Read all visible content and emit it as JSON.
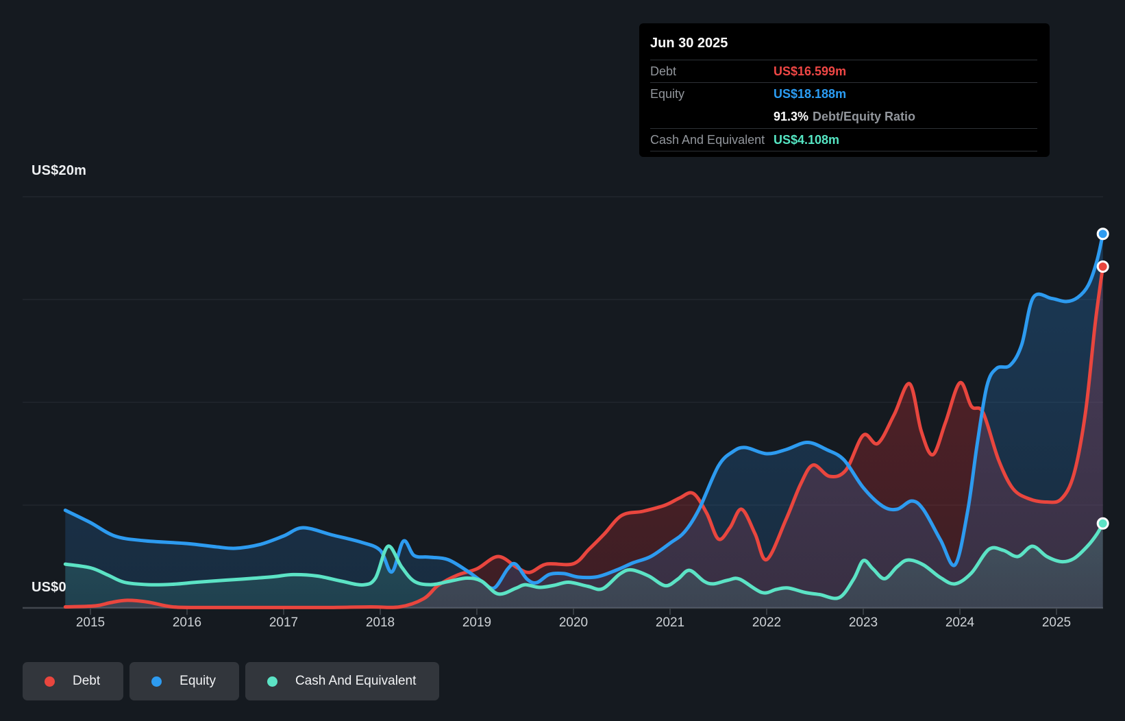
{
  "y_axis": {
    "top": "US$20m",
    "zero": "US$0"
  },
  "tooltip": {
    "title": "Jun 30 2025",
    "debt_label": "Debt",
    "debt_value": "US$16.599m",
    "equity_label": "Equity",
    "equity_value": "US$18.188m",
    "ratio_value": "91.3%",
    "ratio_label": "Debt/Equity Ratio",
    "cash_label": "Cash And Equivalent",
    "cash_value": "US$4.108m"
  },
  "legend": [
    {
      "id": "debt",
      "label": "Debt",
      "color": "#e9463e"
    },
    {
      "id": "equity",
      "label": "Equity",
      "color": "#2d9bf0"
    },
    {
      "id": "cash",
      "label": "Cash And Equivalent",
      "color": "#5ce3c5"
    }
  ],
  "chart_data": {
    "type": "area",
    "title": "Debt to Equity history (US$ millions)",
    "xlabel": "",
    "ylabel": "US$m",
    "ylim": [
      0,
      20
    ],
    "grid": true,
    "y_gridline_step": 5,
    "x_range_years": [
      2014.74,
      2025.5
    ],
    "x_ticks": [
      "2015",
      "2016",
      "2017",
      "2018",
      "2019",
      "2020",
      "2021",
      "2022",
      "2023",
      "2024",
      "2025"
    ],
    "series": [
      {
        "name": "Debt",
        "color": "#e9463e",
        "fill": "#c92d34",
        "fill_opacity_top": 0.36,
        "fill_opacity_bottom": 0.22,
        "points": [
          [
            2014.74,
            0.05
          ],
          [
            2015.05,
            0.1
          ],
          [
            2015.2,
            0.25
          ],
          [
            2015.38,
            0.37
          ],
          [
            2015.6,
            0.28
          ],
          [
            2015.85,
            0.05
          ],
          [
            2016.2,
            0.02
          ],
          [
            2016.8,
            0.02
          ],
          [
            2017.4,
            0.02
          ],
          [
            2017.9,
            0.05
          ],
          [
            2018.2,
            0.05
          ],
          [
            2018.45,
            0.45
          ],
          [
            2018.6,
            1.1
          ],
          [
            2018.8,
            1.6
          ],
          [
            2019.0,
            1.9
          ],
          [
            2019.22,
            2.5
          ],
          [
            2019.42,
            1.95
          ],
          [
            2019.55,
            1.73
          ],
          [
            2019.72,
            2.13
          ],
          [
            2020.0,
            2.15
          ],
          [
            2020.16,
            2.85
          ],
          [
            2020.32,
            3.6
          ],
          [
            2020.5,
            4.5
          ],
          [
            2020.72,
            4.7
          ],
          [
            2020.95,
            5.0
          ],
          [
            2021.1,
            5.35
          ],
          [
            2021.24,
            5.57
          ],
          [
            2021.38,
            4.6
          ],
          [
            2021.5,
            3.35
          ],
          [
            2021.62,
            3.9
          ],
          [
            2021.74,
            4.8
          ],
          [
            2021.88,
            3.6
          ],
          [
            2022.0,
            2.35
          ],
          [
            2022.2,
            4.3
          ],
          [
            2022.35,
            6.0
          ],
          [
            2022.48,
            6.95
          ],
          [
            2022.65,
            6.4
          ],
          [
            2022.82,
            6.7
          ],
          [
            2023.0,
            8.4
          ],
          [
            2023.15,
            8.0
          ],
          [
            2023.32,
            9.4
          ],
          [
            2023.48,
            10.9
          ],
          [
            2023.6,
            8.6
          ],
          [
            2023.72,
            7.45
          ],
          [
            2023.85,
            9.0
          ],
          [
            2024.0,
            10.95
          ],
          [
            2024.12,
            9.8
          ],
          [
            2024.24,
            9.5
          ],
          [
            2024.4,
            7.2
          ],
          [
            2024.55,
            5.8
          ],
          [
            2024.72,
            5.3
          ],
          [
            2024.9,
            5.15
          ],
          [
            2025.05,
            5.3
          ],
          [
            2025.18,
            6.5
          ],
          [
            2025.3,
            9.5
          ],
          [
            2025.4,
            13.8
          ],
          [
            2025.48,
            16.6
          ]
        ],
        "end_value_musd": 16.599
      },
      {
        "name": "Equity",
        "color": "#2d9bf0",
        "fill": "#2674bc",
        "fill_opacity_top": 0.34,
        "fill_opacity_bottom": 0.2,
        "points": [
          [
            2014.74,
            4.75
          ],
          [
            2015.0,
            4.15
          ],
          [
            2015.25,
            3.5
          ],
          [
            2015.55,
            3.27
          ],
          [
            2016.0,
            3.13
          ],
          [
            2016.3,
            2.97
          ],
          [
            2016.5,
            2.9
          ],
          [
            2016.75,
            3.08
          ],
          [
            2017.0,
            3.5
          ],
          [
            2017.2,
            3.9
          ],
          [
            2017.5,
            3.55
          ],
          [
            2017.8,
            3.2
          ],
          [
            2018.0,
            2.8
          ],
          [
            2018.12,
            1.75
          ],
          [
            2018.24,
            3.25
          ],
          [
            2018.35,
            2.55
          ],
          [
            2018.5,
            2.47
          ],
          [
            2018.7,
            2.35
          ],
          [
            2018.9,
            1.8
          ],
          [
            2019.05,
            1.3
          ],
          [
            2019.18,
            0.97
          ],
          [
            2019.32,
            1.9
          ],
          [
            2019.4,
            2.13
          ],
          [
            2019.52,
            1.4
          ],
          [
            2019.62,
            1.23
          ],
          [
            2019.75,
            1.63
          ],
          [
            2019.9,
            1.67
          ],
          [
            2020.05,
            1.5
          ],
          [
            2020.25,
            1.52
          ],
          [
            2020.45,
            1.85
          ],
          [
            2020.62,
            2.2
          ],
          [
            2020.8,
            2.5
          ],
          [
            2021.0,
            3.15
          ],
          [
            2021.15,
            3.7
          ],
          [
            2021.3,
            4.8
          ],
          [
            2021.5,
            6.9
          ],
          [
            2021.65,
            7.6
          ],
          [
            2021.78,
            7.8
          ],
          [
            2022.0,
            7.5
          ],
          [
            2022.2,
            7.7
          ],
          [
            2022.42,
            8.05
          ],
          [
            2022.62,
            7.7
          ],
          [
            2022.8,
            7.2
          ],
          [
            2023.0,
            5.85
          ],
          [
            2023.2,
            4.95
          ],
          [
            2023.35,
            4.8
          ],
          [
            2023.5,
            5.2
          ],
          [
            2023.62,
            4.8
          ],
          [
            2023.8,
            3.3
          ],
          [
            2023.95,
            2.1
          ],
          [
            2024.08,
            4.7
          ],
          [
            2024.18,
            8.0
          ],
          [
            2024.28,
            10.8
          ],
          [
            2024.38,
            11.65
          ],
          [
            2024.52,
            11.8
          ],
          [
            2024.64,
            12.8
          ],
          [
            2024.76,
            15.1
          ],
          [
            2024.95,
            15.05
          ],
          [
            2025.1,
            14.9
          ],
          [
            2025.22,
            15.1
          ],
          [
            2025.33,
            15.7
          ],
          [
            2025.42,
            16.9
          ],
          [
            2025.48,
            18.19
          ]
        ],
        "end_value_musd": 18.188
      },
      {
        "name": "Cash And Equivalent",
        "color": "#5ce3c5",
        "fill": "#56d3ba",
        "fill_opacity_top": 0.2,
        "fill_opacity_bottom": 0.12,
        "points": [
          [
            2014.74,
            2.13
          ],
          [
            2015.0,
            1.95
          ],
          [
            2015.18,
            1.6
          ],
          [
            2015.35,
            1.25
          ],
          [
            2015.6,
            1.13
          ],
          [
            2015.85,
            1.15
          ],
          [
            2016.1,
            1.25
          ],
          [
            2016.4,
            1.35
          ],
          [
            2016.65,
            1.43
          ],
          [
            2016.9,
            1.52
          ],
          [
            2017.1,
            1.62
          ],
          [
            2017.35,
            1.55
          ],
          [
            2017.6,
            1.3
          ],
          [
            2017.82,
            1.12
          ],
          [
            2017.95,
            1.45
          ],
          [
            2018.08,
            3.0
          ],
          [
            2018.22,
            2.0
          ],
          [
            2018.35,
            1.3
          ],
          [
            2018.52,
            1.13
          ],
          [
            2018.72,
            1.3
          ],
          [
            2018.9,
            1.45
          ],
          [
            2019.05,
            1.3
          ],
          [
            2019.22,
            0.68
          ],
          [
            2019.4,
            0.95
          ],
          [
            2019.5,
            1.13
          ],
          [
            2019.65,
            1.0
          ],
          [
            2019.8,
            1.1
          ],
          [
            2019.95,
            1.25
          ],
          [
            2020.15,
            1.05
          ],
          [
            2020.3,
            0.93
          ],
          [
            2020.48,
            1.65
          ],
          [
            2020.6,
            1.85
          ],
          [
            2020.78,
            1.55
          ],
          [
            2020.95,
            1.08
          ],
          [
            2021.08,
            1.4
          ],
          [
            2021.2,
            1.83
          ],
          [
            2021.35,
            1.3
          ],
          [
            2021.45,
            1.17
          ],
          [
            2021.6,
            1.35
          ],
          [
            2021.72,
            1.4
          ],
          [
            2021.95,
            0.75
          ],
          [
            2022.1,
            0.9
          ],
          [
            2022.22,
            0.97
          ],
          [
            2022.4,
            0.75
          ],
          [
            2022.55,
            0.65
          ],
          [
            2022.75,
            0.5
          ],
          [
            2022.9,
            1.4
          ],
          [
            2023.0,
            2.3
          ],
          [
            2023.1,
            1.9
          ],
          [
            2023.22,
            1.42
          ],
          [
            2023.35,
            2.0
          ],
          [
            2023.46,
            2.33
          ],
          [
            2023.62,
            2.1
          ],
          [
            2023.8,
            1.47
          ],
          [
            2023.95,
            1.17
          ],
          [
            2024.12,
            1.7
          ],
          [
            2024.3,
            2.85
          ],
          [
            2024.45,
            2.8
          ],
          [
            2024.6,
            2.5
          ],
          [
            2024.75,
            3.0
          ],
          [
            2024.9,
            2.5
          ],
          [
            2025.05,
            2.25
          ],
          [
            2025.18,
            2.4
          ],
          [
            2025.32,
            3.0
          ],
          [
            2025.42,
            3.6
          ],
          [
            2025.48,
            4.11
          ]
        ],
        "end_value_musd": 4.108
      }
    ],
    "legend_position": "bottom-left",
    "colors": {
      "background": "#151a20",
      "gridline": "#272c33",
      "axis": "#42474e",
      "tick": "#42474e",
      "axis_text": "#ced2d6",
      "money_text": "#eef0f2"
    }
  }
}
